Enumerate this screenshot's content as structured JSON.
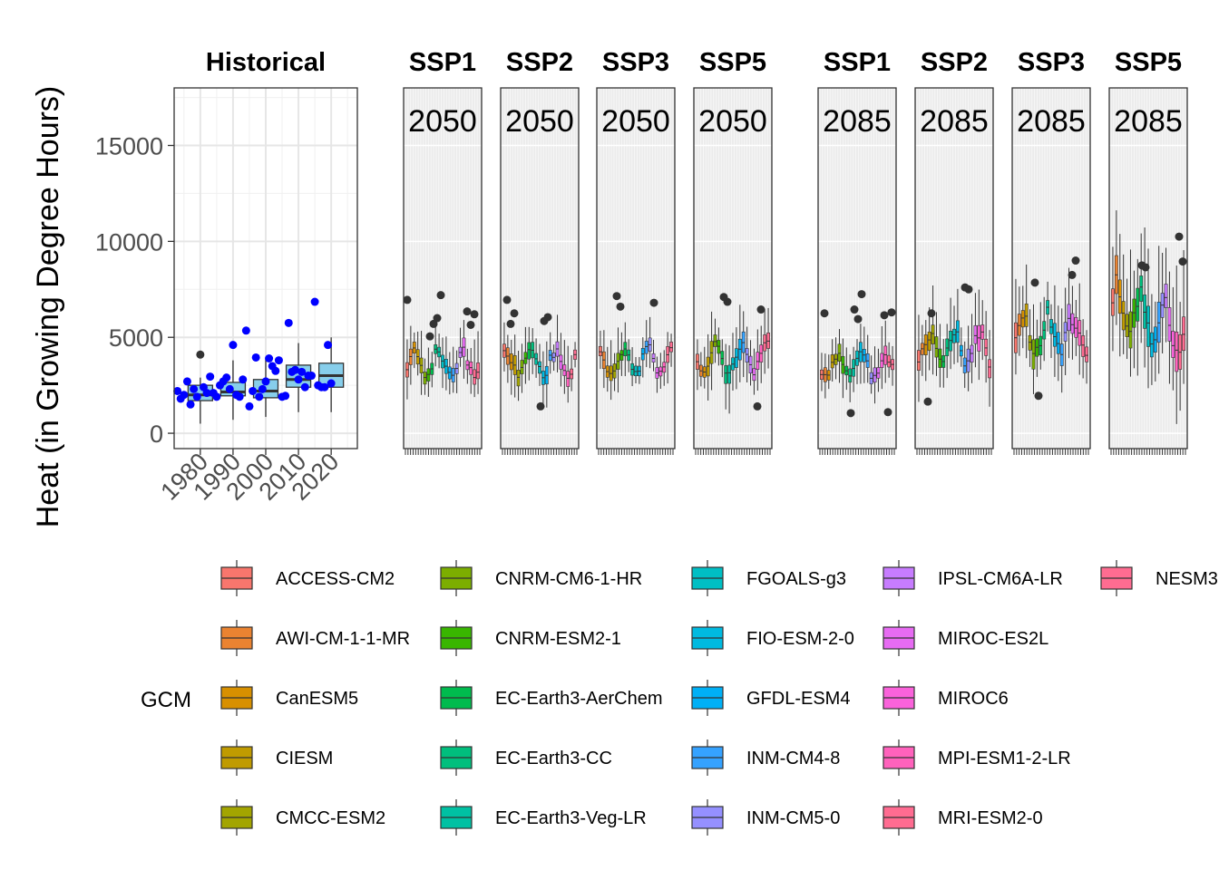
{
  "chart_data": {
    "type": "boxplot",
    "ylabel": "Heat (in Growing Degree Hours)",
    "ylim": [
      -800,
      18000
    ],
    "yticks": [
      0,
      5000,
      10000,
      15000
    ],
    "historical": {
      "title": "Historical",
      "xticks": [
        "1980",
        "1990",
        "2000",
        "2010",
        "2020"
      ],
      "xlim": [
        1972,
        2028
      ],
      "box_fill": "#87CEEB",
      "point_color": "#0000FF",
      "boxes": [
        {
          "x": 1980,
          "q1": 1700,
          "median": 2000,
          "q3": 2500,
          "lo": 500,
          "hi": 2900,
          "out": [
            4100
          ]
        },
        {
          "x": 1990,
          "q1": 1950,
          "median": 2150,
          "q3": 2650,
          "lo": 700,
          "hi": 3800,
          "out": []
        },
        {
          "x": 2000,
          "q1": 1850,
          "median": 2200,
          "q3": 2800,
          "lo": 850,
          "hi": 3900,
          "out": []
        },
        {
          "x": 2010,
          "q1": 2400,
          "median": 2800,
          "q3": 3550,
          "lo": 1100,
          "hi": 4700,
          "out": []
        },
        {
          "x": 2020,
          "q1": 2400,
          "median": 3000,
          "q3": 3650,
          "lo": 1100,
          "hi": 5000,
          "out": []
        }
      ],
      "points": [
        [
          1973,
          2200
        ],
        [
          1974,
          1800
        ],
        [
          1975,
          2000
        ],
        [
          1976,
          2700
        ],
        [
          1977,
          1500
        ],
        [
          1978,
          2300
        ],
        [
          1979,
          1900
        ],
        [
          1981,
          2400
        ],
        [
          1982,
          2100
        ],
        [
          1983,
          2950
        ],
        [
          1984,
          2100
        ],
        [
          1985,
          1900
        ],
        [
          1986,
          2500
        ],
        [
          1987,
          2700
        ],
        [
          1988,
          2900
        ],
        [
          1989,
          2300
        ],
        [
          1990,
          4600
        ],
        [
          1991,
          2000
        ],
        [
          1992,
          1900
        ],
        [
          1993,
          2800
        ],
        [
          1994,
          5350
        ],
        [
          1995,
          1400
        ],
        [
          1996,
          2200
        ],
        [
          1997,
          3950
        ],
        [
          1998,
          1900
        ],
        [
          1999,
          2300
        ],
        [
          2000,
          2700
        ],
        [
          2001,
          3900
        ],
        [
          2002,
          3500
        ],
        [
          2003,
          3250
        ],
        [
          2004,
          3800
        ],
        [
          2005,
          1900
        ],
        [
          2006,
          1950
        ],
        [
          2007,
          5750
        ],
        [
          2008,
          3200
        ],
        [
          2009,
          3300
        ],
        [
          2010,
          2800
        ],
        [
          2011,
          3200
        ],
        [
          2012,
          2400
        ],
        [
          2013,
          3000
        ],
        [
          2014,
          3000
        ],
        [
          2015,
          6850
        ],
        [
          2016,
          2500
        ],
        [
          2017,
          2400
        ],
        [
          2018,
          2400
        ],
        [
          2019,
          4600
        ],
        [
          2020,
          2600
        ]
      ]
    },
    "future_panels": [
      {
        "title": "SSP1",
        "year": "2050",
        "center": 3600,
        "spread": 0.22,
        "outliers": [
          6950,
          7200,
          6200,
          6000,
          5650,
          5700,
          6350,
          5050
        ]
      },
      {
        "title": "SSP2",
        "year": "2050",
        "center": 3700,
        "spread": 0.22,
        "outliers": [
          6250,
          6050,
          5700,
          5850,
          6950,
          1400
        ]
      },
      {
        "title": "SSP3",
        "year": "2050",
        "center": 3700,
        "spread": 0.2,
        "outliers": [
          6600,
          6800,
          7150
        ]
      },
      {
        "title": "SSP5",
        "year": "2050",
        "center": 3900,
        "spread": 0.24,
        "outliers": [
          6850,
          6450,
          7100,
          1400
        ]
      },
      {
        "title": "SSP1",
        "year": "2085",
        "center": 3500,
        "spread": 0.24,
        "outliers": [
          7250,
          6250,
          5950,
          6300,
          6450,
          1100,
          1050,
          6150
        ]
      },
      {
        "title": "SSP2",
        "year": "2085",
        "center": 4400,
        "spread": 0.25,
        "outliers": [
          7500,
          6250,
          7600,
          1650
        ]
      },
      {
        "title": "SSP3",
        "year": "2085",
        "center": 5200,
        "spread": 0.25,
        "outliers": [
          9000,
          1950,
          8250,
          7850
        ]
      },
      {
        "title": "SSP5",
        "year": "2085",
        "center": 6600,
        "spread": 0.3,
        "outliers": [
          8950,
          8650,
          10250,
          8750
        ]
      }
    ],
    "legend": {
      "title": "GCM",
      "columns": [
        [
          {
            "label": "ACCESS-CM2",
            "color": "#F8766D"
          },
          {
            "label": "AWI-CM-1-1-MR",
            "color": "#EA8331"
          },
          {
            "label": "CanESM5",
            "color": "#D89000"
          },
          {
            "label": "CIESM",
            "color": "#C09B00"
          },
          {
            "label": "CMCC-ESM2",
            "color": "#A3A500"
          }
        ],
        [
          {
            "label": "CNRM-CM6-1-HR",
            "color": "#7CAE00"
          },
          {
            "label": "CNRM-ESM2-1",
            "color": "#39B600"
          },
          {
            "label": "EC-Earth3-AerChem",
            "color": "#00BB4E"
          },
          {
            "label": "EC-Earth3-CC",
            "color": "#00BF7D"
          },
          {
            "label": "EC-Earth3-Veg-LR",
            "color": "#00C1A3"
          }
        ],
        [
          {
            "label": "FGOALS-g3",
            "color": "#00BFC4"
          },
          {
            "label": "FIO-ESM-2-0",
            "color": "#00BAE0"
          },
          {
            "label": "GFDL-ESM4",
            "color": "#00B0F6"
          },
          {
            "label": "INM-CM4-8",
            "color": "#35A2FF"
          },
          {
            "label": "INM-CM5-0",
            "color": "#9590FF"
          }
        ],
        [
          {
            "label": "IPSL-CM6A-LR",
            "color": "#C77CFF"
          },
          {
            "label": "MIROC-ES2L",
            "color": "#E76BF3"
          },
          {
            "label": "MIROC6",
            "color": "#FA62DB"
          },
          {
            "label": "MPI-ESM1-2-LR",
            "color": "#FF62BC"
          },
          {
            "label": "MRI-ESM2-0",
            "color": "#FF6C91"
          }
        ],
        [
          {
            "label": "NESM3",
            "color": "#FF6C91"
          }
        ]
      ]
    }
  }
}
